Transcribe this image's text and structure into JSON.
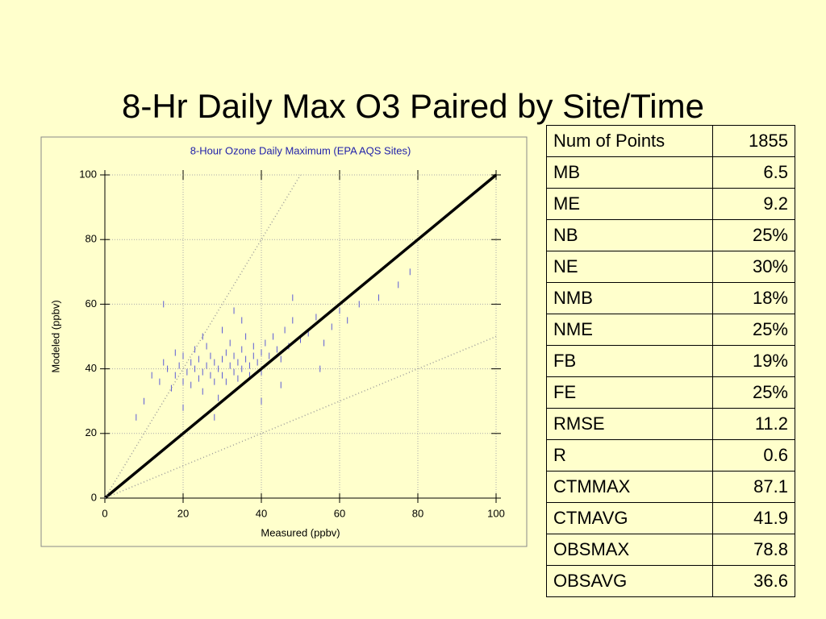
{
  "title": "8-Hr Daily Max O3 Paired by Site/Time",
  "chart_data": {
    "type": "scatter",
    "title": "8-Hour Ozone Daily Maximum (EPA AQS Sites)",
    "xlabel": "Measured (ppbv)",
    "ylabel": "Modeled (ppbv)",
    "xlim": [
      0,
      100
    ],
    "ylim": [
      0,
      100
    ],
    "xticks": [
      0,
      20,
      40,
      60,
      80,
      100
    ],
    "yticks": [
      0,
      20,
      40,
      60,
      80,
      100
    ],
    "grid": true,
    "reference_lines": [
      {
        "slope": 1,
        "style": "solid",
        "color": "#000000"
      },
      {
        "slope": 2,
        "style": "dotted",
        "color": "#999999"
      },
      {
        "slope": 0.5,
        "style": "dotted",
        "color": "#999999"
      }
    ],
    "series": [
      {
        "color": "#5b5bd6",
        "x": [
          12,
          14,
          15,
          16,
          17,
          18,
          18,
          19,
          20,
          20,
          21,
          22,
          22,
          23,
          23,
          24,
          24,
          25,
          25,
          26,
          26,
          27,
          27,
          28,
          28,
          29,
          29,
          30,
          30,
          31,
          31,
          32,
          32,
          33,
          33,
          34,
          34,
          35,
          35,
          36,
          36,
          37,
          37,
          38,
          38,
          39,
          40,
          40,
          41,
          42,
          43,
          44,
          45,
          46,
          47,
          48,
          50,
          52,
          54,
          56,
          58,
          60,
          62,
          65,
          70,
          75,
          78,
          10,
          8,
          20,
          25,
          30,
          35,
          45,
          55,
          15,
          28,
          33,
          40,
          48
        ],
        "values": [
          38,
          36,
          42,
          40,
          34,
          45,
          38,
          41,
          36,
          44,
          39,
          42,
          35,
          40,
          46,
          37,
          43,
          39,
          33,
          41,
          47,
          38,
          44,
          36,
          42,
          40,
          31,
          43,
          38,
          45,
          36,
          41,
          48,
          39,
          44,
          42,
          37,
          46,
          40,
          43,
          50,
          41,
          38,
          47,
          44,
          42,
          45,
          39,
          48,
          44,
          50,
          46,
          43,
          52,
          47,
          55,
          49,
          51,
          56,
          48,
          53,
          58,
          55,
          60,
          62,
          66,
          70,
          30,
          25,
          28,
          50,
          52,
          55,
          35,
          40,
          60,
          25,
          58,
          30,
          62
        ]
      }
    ]
  },
  "table": {
    "rows": [
      [
        "Num of Points",
        "1855"
      ],
      [
        "MB",
        "6.5"
      ],
      [
        "ME",
        "9.2"
      ],
      [
        "NB",
        "25%"
      ],
      [
        "NE",
        "30%"
      ],
      [
        "NMB",
        "18%"
      ],
      [
        "NME",
        "25%"
      ],
      [
        "FB",
        "19%"
      ],
      [
        "FE",
        "25%"
      ],
      [
        "RMSE",
        "11.2"
      ],
      [
        "R",
        "0.6"
      ],
      [
        "CTMMAX",
        "87.1"
      ],
      [
        "CTMAVG",
        "41.9"
      ],
      [
        "OBSMAX",
        "78.8"
      ],
      [
        "OBSAVG",
        "36.6"
      ]
    ]
  }
}
